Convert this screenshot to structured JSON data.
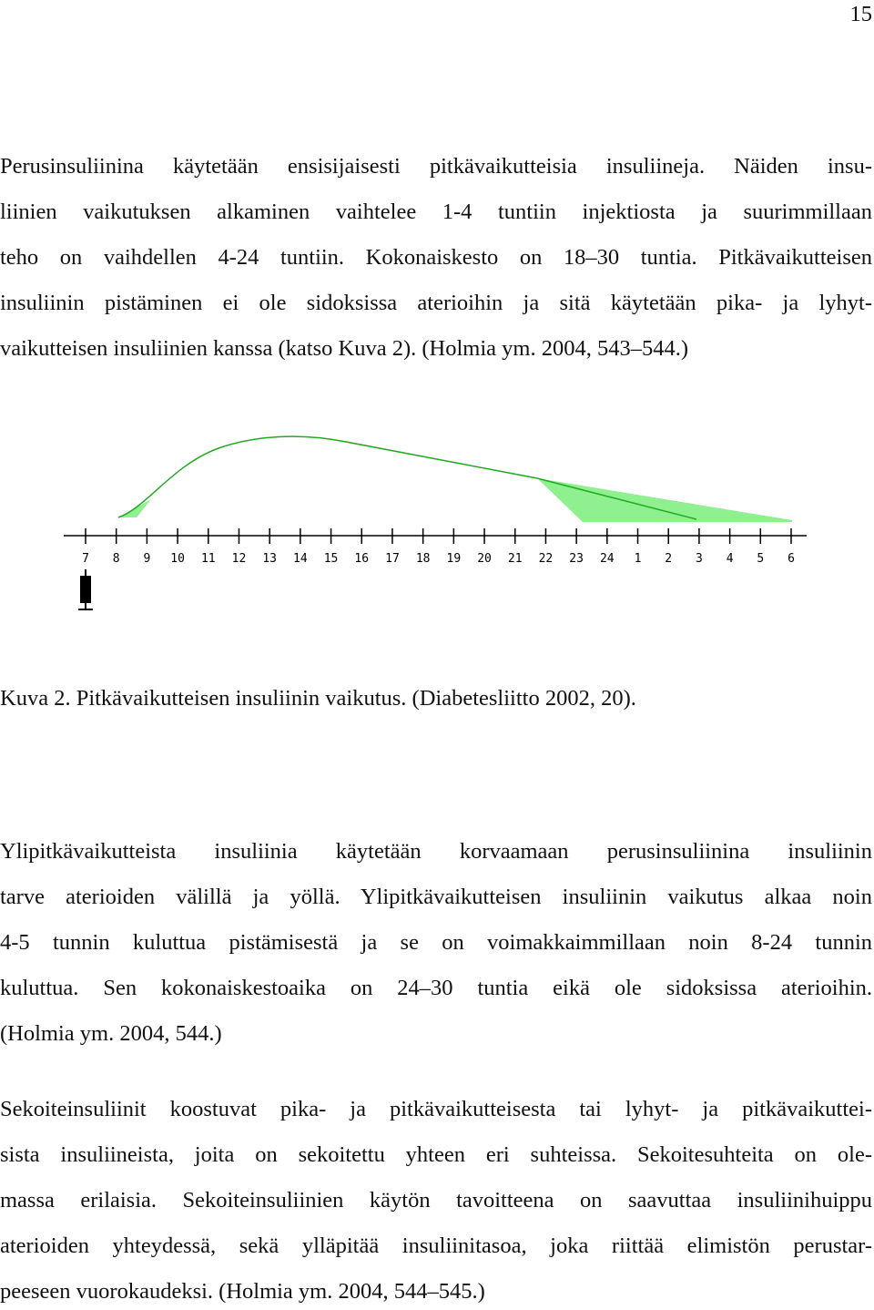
{
  "page_number": "15",
  "paragraphs": [
    [
      "Perusinsuliinina käytetään ensisijaisesti pitkävaikutteisia insuliineja. Näiden insu-",
      "liinien vaikutuksen alkaminen vaihtelee 1-4 tuntiin injektiosta ja suurimmillaan",
      "teho on vaihdellen 4-24 tuntiin. Kokonaiskesto on 18–30 tuntia. Pitkävaikutteisen",
      "insuliinin pistäminen ei ole sidoksissa aterioihin ja sitä käytetään pika- ja lyhyt-",
      "vaikutteisen insuliinien kanssa (katso Kuva 2). (Holmia ym. 2004, 543–544.)"
    ],
    [
      "Ylipitkävaikutteista insuliinia käytetään korvaamaan perusinsuliinina insuliinin",
      "tarve aterioiden välillä ja yöllä. Ylipitkävaikutteisen insuliinin vaikutus alkaa noin",
      "4-5 tunnin kuluttua pistämisestä ja se on voimakkaimmillaan noin 8-24 tunnin",
      "kuluttua. Sen kokonaiskestoaika on 24–30 tuntia eikä ole sidoksissa aterioihin.",
      "(Holmia ym. 2004, 544.)"
    ],
    [
      "Sekoiteinsuliinit koostuvat pika- ja pitkävaikutteisesta tai lyhyt- ja pitkävaikuttei-",
      "sista insuliineista, joita on sekoitettu yhteen eri suhteissa. Sekoitesuhteita on ole-",
      "massa erilaisia. Sekoiteinsuliinien käytön tavoitteena on saavuttaa insuliinihuippu",
      "aterioiden yhteydessä, sekä ylläpitää insuliinitasoa, joka riittää elimistön perustar-",
      "peeseen vuorokaudeksi. (Holmia ym. 2004, 544–545.)"
    ]
  ],
  "figure": {
    "hours": [
      7,
      8,
      9,
      10,
      11,
      12,
      13,
      14,
      15,
      16,
      17,
      18,
      19,
      20,
      21,
      22,
      23,
      24,
      1,
      2,
      3,
      4,
      5,
      6
    ],
    "caption": "Kuva 2. Pitkävaikutteisen insuliinin vaikutus. (Diabetesliitto 2002, 20)."
  }
}
